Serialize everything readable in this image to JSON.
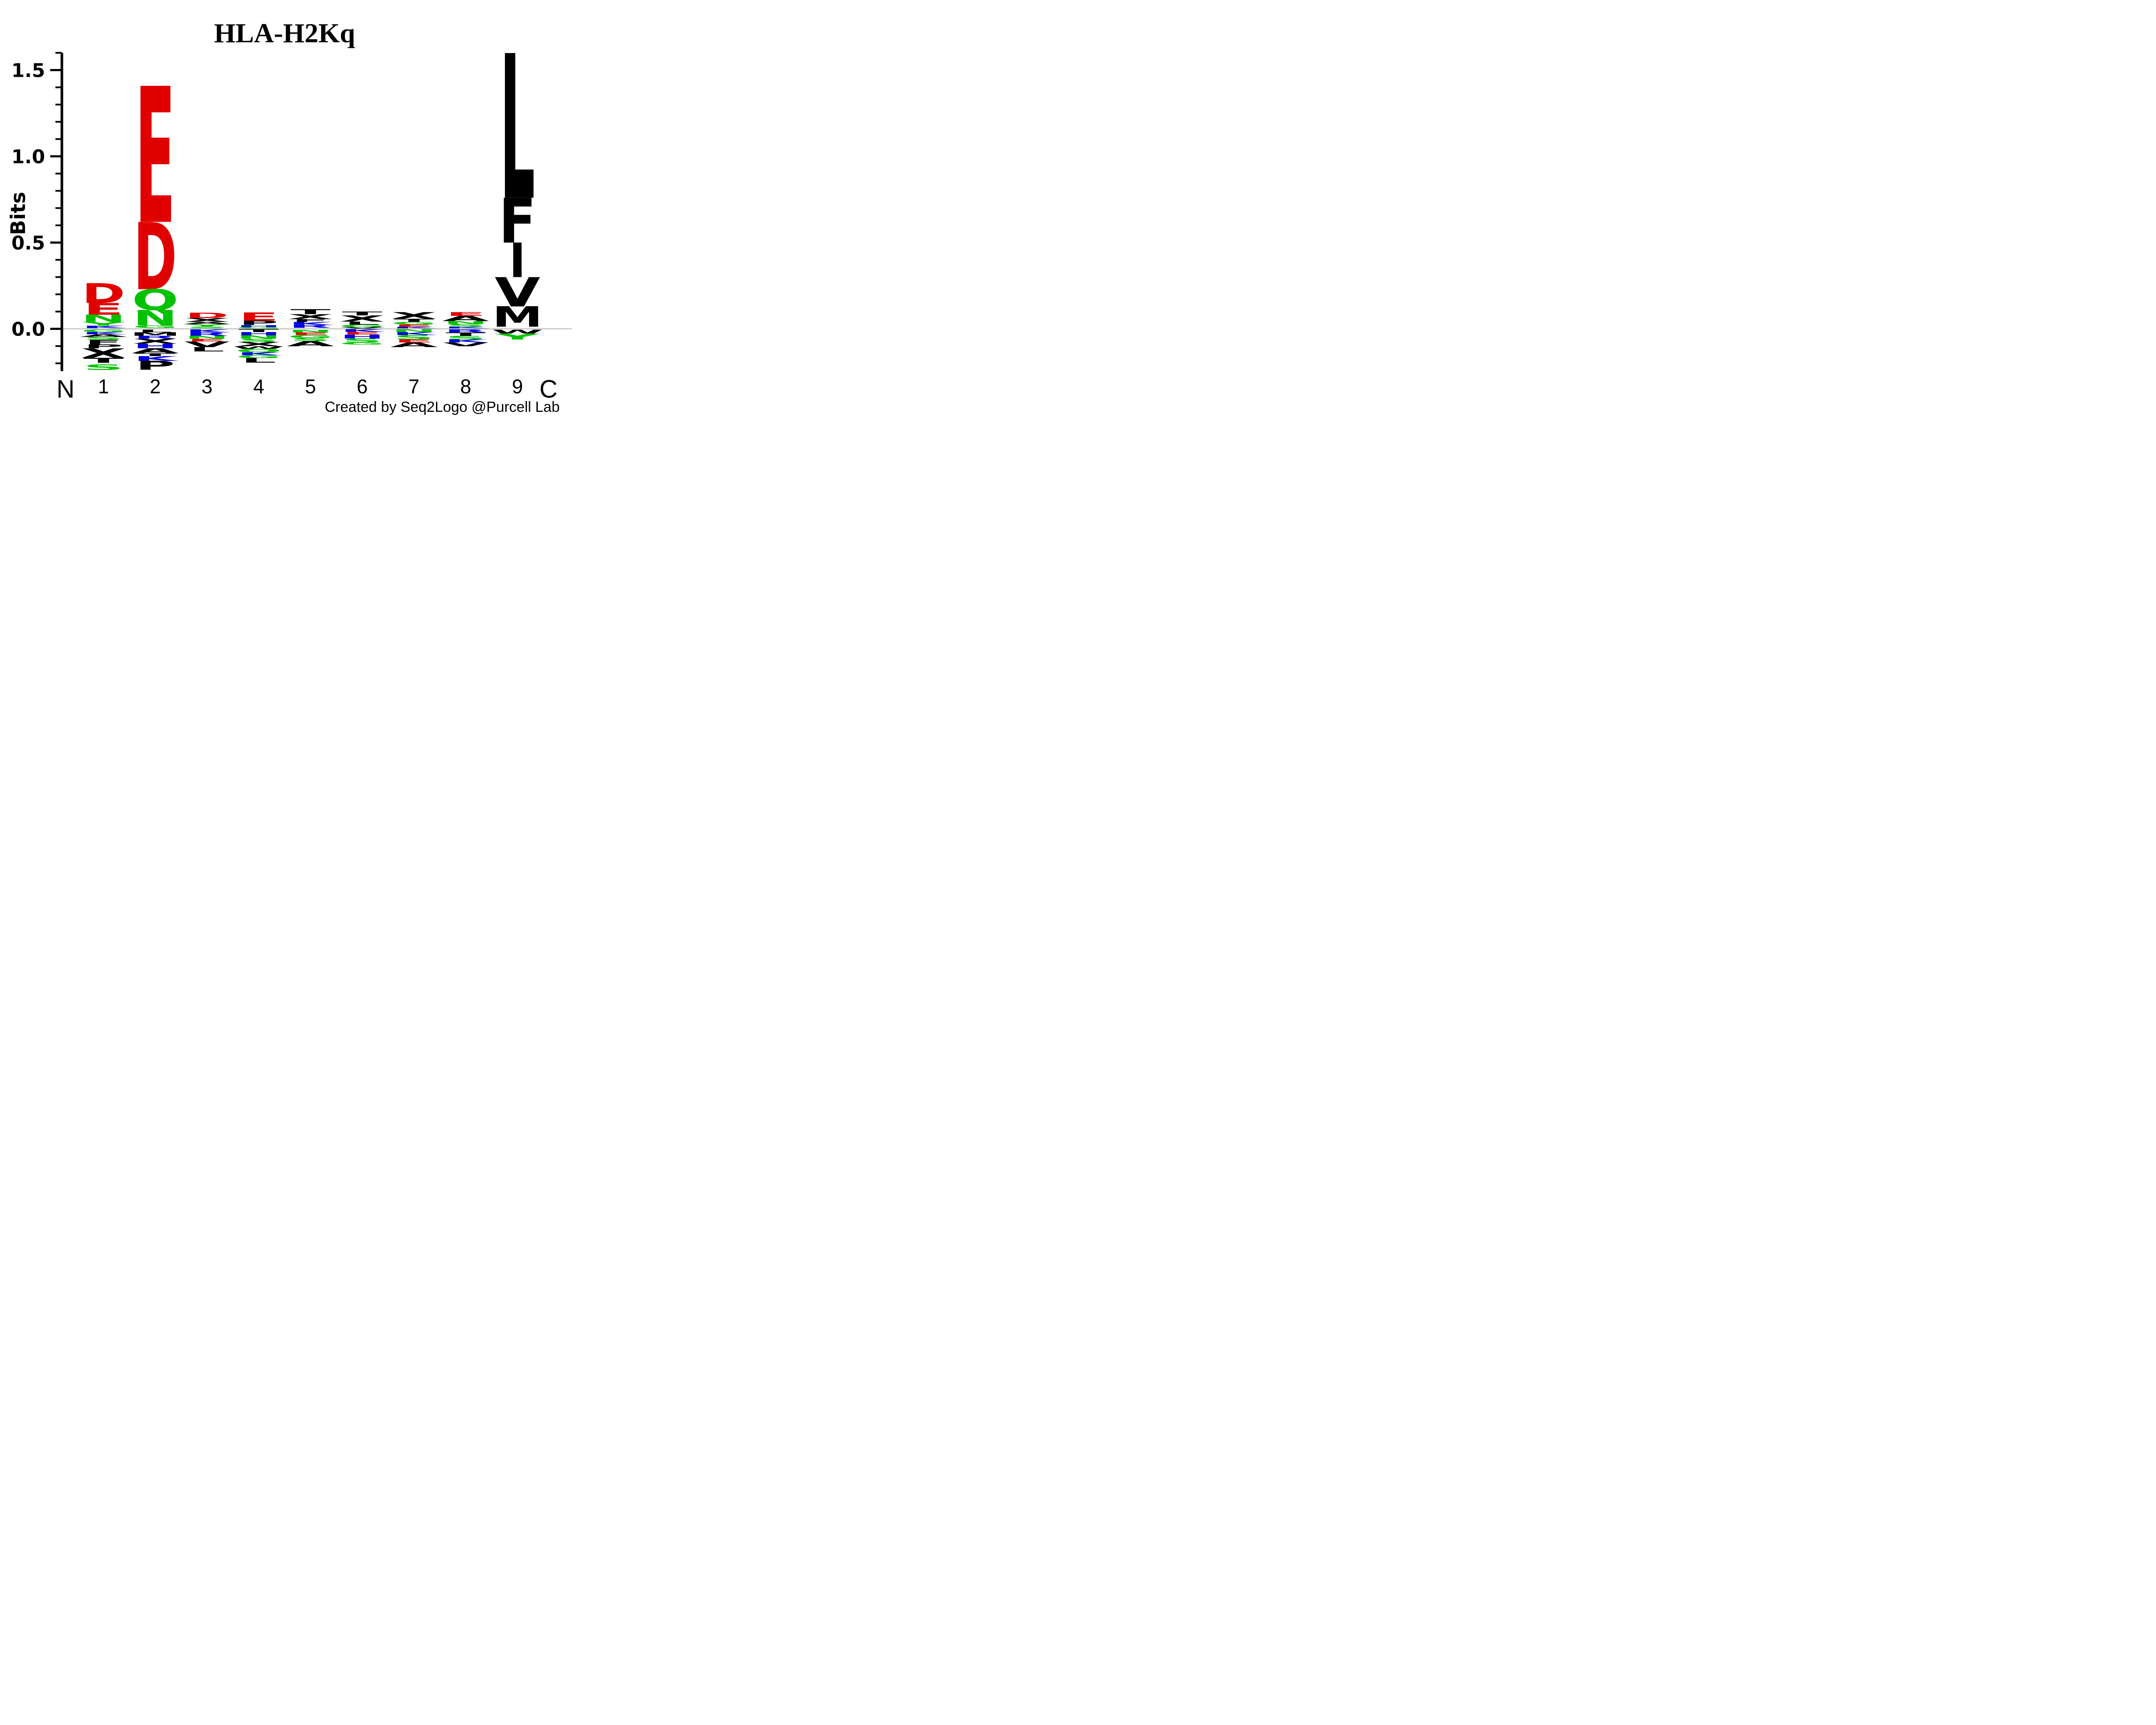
{
  "title": "HLA-H2Kq",
  "attribution": "Created by Seq2Logo @Purcell Lab",
  "y_axis": {
    "label": "Bits",
    "major_ticks": [
      1.5,
      1.0,
      0.5,
      0.0
    ],
    "major_tick_labels": [
      "1.5",
      "1.0",
      "0.5",
      "0.0"
    ],
    "minor_ticks": [
      1.6,
      1.4,
      1.3,
      1.2,
      1.1,
      0.9,
      0.8,
      0.7,
      0.6,
      0.4,
      0.3,
      0.2,
      0.1,
      -0.1,
      -0.2
    ],
    "range": [
      -0.245,
      1.6
    ]
  },
  "x_axis": {
    "position_labels": [
      "1",
      "2",
      "3",
      "4",
      "5",
      "6",
      "7",
      "8",
      "9"
    ],
    "left_end_label": "N",
    "right_end_label": "C"
  },
  "colors": {
    "red": "#e00000",
    "green": "#00c200",
    "blue": "#0000e0",
    "black": "#000000",
    "zero_line": "#b3b3b3"
  },
  "chart_data": {
    "type": "sequence_logo",
    "title": "HLA-H2Kq",
    "ylabel": "Bits",
    "xlabel": "",
    "ylim": [
      -0.245,
      1.6
    ],
    "legend": "none",
    "grid": "off",
    "positions": [
      {
        "position": "1",
        "letters": [
          {
            "ch": "D",
            "color": "red",
            "from": 0.265,
            "to": 0.15
          },
          {
            "ch": "E",
            "color": "red",
            "from": 0.15,
            "to": 0.082
          },
          {
            "ch": "N",
            "color": "green",
            "from": 0.082,
            "to": 0.04
          },
          {
            "ch": "Y",
            "color": "green",
            "from": 0.04,
            "to": 0.018
          },
          {
            "ch": "K",
            "color": "blue",
            "from": 0.018,
            "to": 0.004
          },
          {
            "ch": "G",
            "color": "green",
            "from": -0.004,
            "to": -0.018
          },
          {
            "ch": "K",
            "color": "blue",
            "from": -0.018,
            "to": -0.032
          },
          {
            "ch": "A",
            "color": "black",
            "from": -0.032,
            "to": -0.047
          },
          {
            "ch": "S",
            "color": "green",
            "from": -0.047,
            "to": -0.063
          },
          {
            "ch": "F",
            "color": "black",
            "from": -0.063,
            "to": -0.091
          },
          {
            "ch": "P",
            "color": "black",
            "from": -0.091,
            "to": -0.113
          },
          {
            "ch": "X",
            "color": "black",
            "from": -0.113,
            "to": -0.168
          },
          {
            "ch": "T",
            "color": "black",
            "from": -0.168,
            "to": -0.197
          },
          {
            "ch": "S",
            "color": "green",
            "from": -0.206,
            "to": -0.238
          }
        ]
      },
      {
        "position": "2",
        "letters": [
          {
            "ch": "E",
            "color": "red",
            "from": 1.41,
            "to": 0.62
          },
          {
            "ch": "D",
            "color": "red",
            "from": 0.62,
            "to": 0.23
          },
          {
            "ch": "Q",
            "color": "green",
            "from": 0.23,
            "to": 0.11
          },
          {
            "ch": "N",
            "color": "green",
            "from": 0.11,
            "to": 0.02
          },
          {
            "ch": "G",
            "color": "green",
            "from": 0.02,
            "to": 0.005
          },
          {
            "ch": "L",
            "color": "black",
            "from": -0.005,
            "to": -0.02
          },
          {
            "ch": "M",
            "color": "black",
            "from": -0.02,
            "to": -0.04
          },
          {
            "ch": "R",
            "color": "blue",
            "from": -0.04,
            "to": -0.057
          },
          {
            "ch": "X",
            "color": "black",
            "from": -0.057,
            "to": -0.086
          },
          {
            "ch": "H",
            "color": "blue",
            "from": -0.086,
            "to": -0.112
          },
          {
            "ch": "A",
            "color": "black",
            "from": -0.112,
            "to": -0.142
          },
          {
            "ch": "T",
            "color": "black",
            "from": -0.142,
            "to": -0.158
          },
          {
            "ch": "K",
            "color": "blue",
            "from": -0.158,
            "to": -0.186
          },
          {
            "ch": "P",
            "color": "black",
            "from": -0.186,
            "to": -0.238
          }
        ]
      },
      {
        "position": "3",
        "letters": [
          {
            "ch": "D",
            "color": "red",
            "from": 0.093,
            "to": 0.063
          },
          {
            "ch": "X",
            "color": "black",
            "from": 0.063,
            "to": 0.04
          },
          {
            "ch": "A",
            "color": "black",
            "from": 0.04,
            "to": 0.027
          },
          {
            "ch": "Y",
            "color": "green",
            "from": 0.027,
            "to": 0.013
          },
          {
            "ch": "S",
            "color": "green",
            "from": 0.013,
            "to": 0.003
          },
          {
            "ch": "K",
            "color": "blue",
            "from": -0.003,
            "to": -0.021
          },
          {
            "ch": "R",
            "color": "blue",
            "from": -0.021,
            "to": -0.041
          },
          {
            "ch": "N",
            "color": "green",
            "from": -0.041,
            "to": -0.058
          },
          {
            "ch": "E",
            "color": "red",
            "from": -0.058,
            "to": -0.073
          },
          {
            "ch": "V",
            "color": "black",
            "from": -0.073,
            "to": -0.106
          },
          {
            "ch": "L",
            "color": "black",
            "from": -0.106,
            "to": -0.131
          }
        ]
      },
      {
        "position": "4",
        "letters": [
          {
            "ch": "E",
            "color": "red",
            "from": 0.095,
            "to": 0.047
          },
          {
            "ch": "P",
            "color": "black",
            "from": 0.047,
            "to": 0.022
          },
          {
            "ch": "H",
            "color": "blue",
            "from": 0.022,
            "to": 0.01
          },
          {
            "ch": "G",
            "color": "green",
            "from": 0.01,
            "to": 0.002
          },
          {
            "ch": "T",
            "color": "black",
            "from": -0.002,
            "to": -0.019
          },
          {
            "ch": "H",
            "color": "blue",
            "from": -0.019,
            "to": -0.039
          },
          {
            "ch": "N",
            "color": "green",
            "from": -0.039,
            "to": -0.058
          },
          {
            "ch": "S",
            "color": "green",
            "from": -0.058,
            "to": -0.076
          },
          {
            "ch": "X",
            "color": "black",
            "from": -0.076,
            "to": -0.101
          },
          {
            "ch": "W",
            "color": "black",
            "from": -0.101,
            "to": -0.116
          },
          {
            "ch": "Q",
            "color": "green",
            "from": -0.116,
            "to": -0.136
          },
          {
            "ch": "K",
            "color": "blue",
            "from": -0.136,
            "to": -0.153
          },
          {
            "ch": "G",
            "color": "green",
            "from": -0.153,
            "to": -0.169
          },
          {
            "ch": "L",
            "color": "black",
            "from": -0.169,
            "to": -0.196
          }
        ]
      },
      {
        "position": "5",
        "letters": [
          {
            "ch": "T",
            "color": "black",
            "from": 0.114,
            "to": 0.085
          },
          {
            "ch": "X",
            "color": "black",
            "from": 0.085,
            "to": 0.056
          },
          {
            "ch": "F",
            "color": "black",
            "from": 0.056,
            "to": 0.04
          },
          {
            "ch": "K",
            "color": "blue",
            "from": 0.04,
            "to": 0.022
          },
          {
            "ch": "R",
            "color": "blue",
            "from": 0.022,
            "to": 0.006
          },
          {
            "ch": "N",
            "color": "green",
            "from": -0.006,
            "to": -0.021
          },
          {
            "ch": "E",
            "color": "red",
            "from": -0.021,
            "to": -0.036
          },
          {
            "ch": "G",
            "color": "green",
            "from": -0.036,
            "to": -0.053
          },
          {
            "ch": "S",
            "color": "green",
            "from": -0.053,
            "to": -0.071
          },
          {
            "ch": "A",
            "color": "black",
            "from": -0.071,
            "to": -0.101
          }
        ]
      },
      {
        "position": "6",
        "letters": [
          {
            "ch": "T",
            "color": "black",
            "from": 0.1,
            "to": 0.078
          },
          {
            "ch": "X",
            "color": "black",
            "from": 0.078,
            "to": 0.042
          },
          {
            "ch": "L",
            "color": "black",
            "from": 0.042,
            "to": 0.024
          },
          {
            "ch": "G",
            "color": "green",
            "from": 0.024,
            "to": 0.01
          },
          {
            "ch": "V",
            "color": "black",
            "from": 0.01,
            "to": 0.002
          },
          {
            "ch": "K",
            "color": "blue",
            "from": -0.002,
            "to": -0.018
          },
          {
            "ch": "E",
            "color": "red",
            "from": -0.018,
            "to": -0.033
          },
          {
            "ch": "H",
            "color": "blue",
            "from": -0.033,
            "to": -0.056
          },
          {
            "ch": "S",
            "color": "green",
            "from": -0.056,
            "to": -0.079
          },
          {
            "ch": "G",
            "color": "green",
            "from": -0.079,
            "to": -0.091
          }
        ]
      },
      {
        "position": "7",
        "letters": [
          {
            "ch": "X",
            "color": "black",
            "from": 0.097,
            "to": 0.058
          },
          {
            "ch": "T",
            "color": "black",
            "from": 0.058,
            "to": 0.04
          },
          {
            "ch": "G",
            "color": "green",
            "from": 0.04,
            "to": 0.025
          },
          {
            "ch": "E",
            "color": "red",
            "from": 0.025,
            "to": 0.012
          },
          {
            "ch": "K",
            "color": "blue",
            "from": 0.012,
            "to": 0.003
          },
          {
            "ch": "N",
            "color": "green",
            "from": -0.003,
            "to": -0.019
          },
          {
            "ch": "K",
            "color": "blue",
            "from": -0.019,
            "to": -0.036
          },
          {
            "ch": "S",
            "color": "green",
            "from": -0.036,
            "to": -0.061
          },
          {
            "ch": "E",
            "color": "red",
            "from": -0.061,
            "to": -0.079
          },
          {
            "ch": "A",
            "color": "black",
            "from": -0.079,
            "to": -0.106
          }
        ]
      },
      {
        "position": "8",
        "letters": [
          {
            "ch": "E",
            "color": "red",
            "from": 0.097,
            "to": 0.075
          },
          {
            "ch": "A",
            "color": "black",
            "from": 0.075,
            "to": 0.045
          },
          {
            "ch": "N",
            "color": "green",
            "from": 0.045,
            "to": 0.028
          },
          {
            "ch": "S",
            "color": "green",
            "from": 0.028,
            "to": 0.012
          },
          {
            "ch": "K",
            "color": "blue",
            "from": 0.012,
            "to": 0.003
          },
          {
            "ch": "R",
            "color": "blue",
            "from": -0.003,
            "to": -0.021
          },
          {
            "ch": "T",
            "color": "black",
            "from": -0.021,
            "to": -0.041
          },
          {
            "ch": "S",
            "color": "green",
            "from": -0.041,
            "to": -0.061
          },
          {
            "ch": "K",
            "color": "blue",
            "from": -0.061,
            "to": -0.079
          },
          {
            "ch": "V",
            "color": "black",
            "from": -0.079,
            "to": -0.101
          }
        ]
      },
      {
        "position": "9",
        "letters": [
          {
            "ch": "L",
            "color": "black",
            "from": 1.6,
            "to": 0.76
          },
          {
            "ch": "F",
            "color": "black",
            "from": 0.76,
            "to": 0.5
          },
          {
            "ch": "I",
            "color": "black",
            "from": 0.5,
            "to": 0.3
          },
          {
            "ch": "V",
            "color": "black",
            "from": 0.3,
            "to": 0.13
          },
          {
            "ch": "M",
            "color": "black",
            "from": 0.13,
            "to": 0.012
          },
          {
            "ch": "W",
            "color": "black",
            "from": -0.006,
            "to": -0.028
          },
          {
            "ch": "Y",
            "color": "green",
            "from": -0.028,
            "to": -0.062
          }
        ]
      }
    ]
  }
}
